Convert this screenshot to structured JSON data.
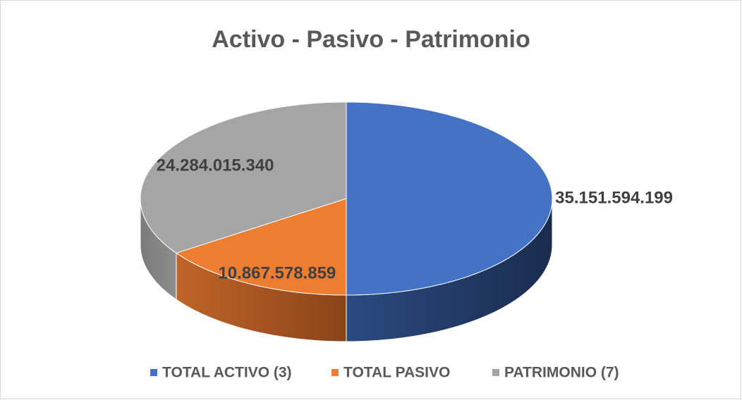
{
  "chart_data": {
    "type": "pie",
    "title": "Activo - Pasivo -  Patrimonio",
    "categories": [
      "TOTAL ACTIVO (3)",
      "TOTAL PASIVO",
      "PATRIMONIO (7)"
    ],
    "values": [
      35151594199,
      10867578859,
      24284015340
    ],
    "value_labels": [
      "35.151.594.199",
      "10.867.578.859",
      "24.284.015.340"
    ],
    "colors": [
      "#4472c4",
      "#ed7d31",
      "#a5a5a5"
    ],
    "three_d": true,
    "legend": "bottom"
  }
}
